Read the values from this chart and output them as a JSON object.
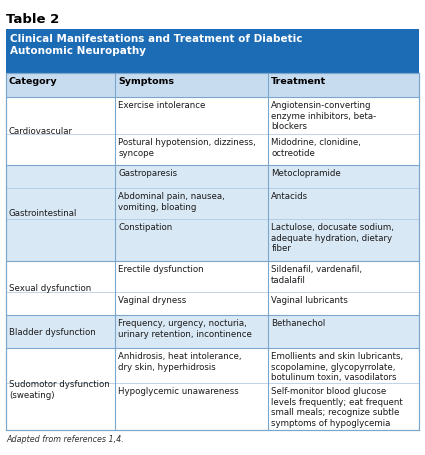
{
  "table_title": "Table 2",
  "header_text": "Clinical Manifestations and Treatment of Diabetic\nAutonomic Neuropathy",
  "col_headers": [
    "Category",
    "Symptoms",
    "Treatment"
  ],
  "rows": [
    {
      "category": "Cardiovascular",
      "subrows": [
        {
          "symptom": "Exercise intolerance",
          "treatment": "Angiotensin-converting\nenzyme inhibitors, beta-\nblockers"
        },
        {
          "symptom": "Postural hypotension, dizziness,\nsyncope",
          "treatment": "Midodrine, clonidine,\noctreotide"
        }
      ]
    },
    {
      "category": "Gastrointestinal",
      "subrows": [
        {
          "symptom": "Gastroparesis",
          "treatment": "Metoclopramide"
        },
        {
          "symptom": "Abdominal pain, nausea,\nvomiting, bloating",
          "treatment": "Antacids"
        },
        {
          "symptom": "Constipation",
          "treatment": "Lactulose, docusate sodium,\nadequate hydration, dietary\nfiber"
        }
      ]
    },
    {
      "category": "Sexual dysfunction",
      "subrows": [
        {
          "symptom": "Erectile dysfunction",
          "treatment": "Sildenafil, vardenafil,\ntadalafil"
        },
        {
          "symptom": "Vaginal dryness",
          "treatment": "Vaginal lubricants"
        }
      ]
    },
    {
      "category": "Bladder dysfunction",
      "subrows": [
        {
          "symptom": "Frequency, urgency, nocturia,\nurinary retention, incontinence",
          "treatment": "Bethanechol"
        }
      ]
    },
    {
      "category": "Sudomotor dysfunction\n(sweating)",
      "subrows": [
        {
          "symptom": "Anhidrosis, heat intolerance,\ndry skin, hyperhidrosis",
          "treatment": "Emollients and skin lubricants,\nscopolamine, glycopyrrolate,\nbotulinum toxin, vasodilators"
        },
        {
          "symptom": "Hypoglycemic unawareness",
          "treatment": "Self-monitor blood glucose\nlevels frequently; eat frequent\nsmall meals; recognize subtle\nsymptoms of hypoglycemia"
        }
      ]
    }
  ],
  "footer": "Adapted from references 1,4.",
  "header_bg": "#1B6BB5",
  "col_header_bg": "#C8DCF0",
  "row_bg_colors": [
    "#FFFFFF",
    "#D9E8F5",
    "#FFFFFF",
    "#D9E8F5",
    "#FFFFFF"
  ],
  "border_color": "#7BA7CC",
  "header_text_color": "#FFFFFF",
  "col_header_text_color": "#000000",
  "body_text_color": "#1A1A1A",
  "title_color": "#000000",
  "subrow_divider_color": "#A8C4DC"
}
